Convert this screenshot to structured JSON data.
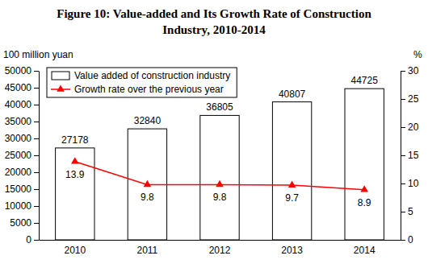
{
  "chart_data": {
    "type": "bar",
    "title": "Figure 10: Value-added and Its Growth Rate of Construction Industry, 2010-2014",
    "y_label": "100 million yuan",
    "y2_label": "%",
    "categories": [
      "2010",
      "2011",
      "2012",
      "2013",
      "2014"
    ],
    "series": [
      {
        "name": "Value added of construction industry",
        "type": "bar",
        "color": "#ffffff",
        "values": [
          27178,
          32840,
          36805,
          40807,
          44725
        ]
      },
      {
        "name": "Growth rate over the previous year",
        "type": "line",
        "color": "#ff0000",
        "marker": "triangle",
        "axis": "y2",
        "values": [
          13.9,
          9.8,
          9.8,
          9.7,
          8.9
        ]
      }
    ],
    "ylim": [
      0,
      50000
    ],
    "yticks": [
      0,
      5000,
      10000,
      15000,
      20000,
      25000,
      30000,
      35000,
      40000,
      45000,
      50000
    ],
    "y2lim": [
      0,
      30
    ],
    "y2ticks": [
      0,
      5,
      10,
      15,
      20,
      25,
      30
    ],
    "legend": "upper left",
    "data_labels": true,
    "grid": false
  }
}
